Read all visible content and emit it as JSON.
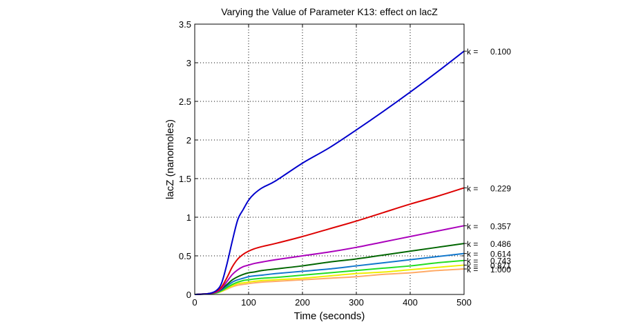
{
  "chart_data": {
    "type": "line",
    "title": "Varying the Value of Parameter K13: effect on lacZ",
    "xlabel": "Time (seconds)",
    "ylabel": "lacZ (nanomoles)",
    "xlim": [
      0,
      500
    ],
    "ylim": [
      0,
      3.5
    ],
    "xticks": [
      0,
      100,
      200,
      300,
      400,
      500
    ],
    "xtick_labels": [
      "0",
      "100",
      "200",
      "300",
      "400",
      "500"
    ],
    "yticks": [
      0,
      0.5,
      1,
      1.5,
      2,
      2.5,
      3,
      3.5
    ],
    "ytick_labels": [
      "0",
      "0.5",
      "1",
      "1.5",
      "2",
      "2.5",
      "3",
      "3.5"
    ],
    "grid": true,
    "legend": "right-side annotations",
    "x": [
      0,
      25,
      40,
      50,
      60,
      70,
      80,
      90,
      100,
      110,
      125,
      150,
      200,
      250,
      300,
      350,
      400,
      450,
      500
    ],
    "series": [
      {
        "name": "k = 0.100",
        "k_label": "k =",
        "k_value": "0.100",
        "color": "#0000cc",
        "values": [
          0,
          0.01,
          0.05,
          0.15,
          0.4,
          0.7,
          0.97,
          1.1,
          1.22,
          1.3,
          1.38,
          1.47,
          1.7,
          1.9,
          2.13,
          2.37,
          2.62,
          2.88,
          3.15
        ]
      },
      {
        "name": "k = 0.229",
        "k_label": "k =",
        "k_value": "0.229",
        "color": "#dd0000",
        "values": [
          0,
          0.01,
          0.04,
          0.1,
          0.22,
          0.36,
          0.46,
          0.52,
          0.56,
          0.59,
          0.62,
          0.66,
          0.75,
          0.85,
          0.95,
          1.06,
          1.17,
          1.27,
          1.38
        ]
      },
      {
        "name": "k = 0.357",
        "k_label": "k =",
        "k_value": "0.357",
        "color": "#aa00bb",
        "values": [
          0,
          0.01,
          0.03,
          0.08,
          0.17,
          0.26,
          0.32,
          0.36,
          0.38,
          0.4,
          0.42,
          0.45,
          0.5,
          0.55,
          0.61,
          0.68,
          0.75,
          0.82,
          0.89
        ]
      },
      {
        "name": "k = 0.486",
        "k_label": "k =",
        "k_value": "0.486",
        "color": "#006600",
        "values": [
          0,
          0.01,
          0.03,
          0.07,
          0.13,
          0.19,
          0.23,
          0.26,
          0.28,
          0.29,
          0.31,
          0.33,
          0.37,
          0.42,
          0.46,
          0.51,
          0.56,
          0.61,
          0.66
        ]
      },
      {
        "name": "k = 0.614",
        "k_label": "k =",
        "k_value": "0.614",
        "color": "#1177cc",
        "values": [
          0,
          0.01,
          0.03,
          0.06,
          0.11,
          0.16,
          0.19,
          0.21,
          0.23,
          0.24,
          0.25,
          0.27,
          0.3,
          0.33,
          0.37,
          0.41,
          0.45,
          0.49,
          0.53
        ]
      },
      {
        "name": "k = 0.743",
        "k_label": "k =",
        "k_value": "0.743",
        "color": "#22dd22",
        "values": [
          0,
          0.01,
          0.02,
          0.05,
          0.09,
          0.13,
          0.16,
          0.18,
          0.19,
          0.2,
          0.21,
          0.22,
          0.25,
          0.28,
          0.31,
          0.34,
          0.37,
          0.41,
          0.44
        ]
      },
      {
        "name": "k = 0.871",
        "k_label": "k =",
        "k_value": "0.871",
        "color": "#eeee00",
        "values": [
          0,
          0.01,
          0.02,
          0.04,
          0.08,
          0.11,
          0.14,
          0.15,
          0.16,
          0.17,
          0.18,
          0.19,
          0.21,
          0.24,
          0.27,
          0.29,
          0.32,
          0.35,
          0.38
        ]
      },
      {
        "name": "k = 1.000",
        "k_label": "k =",
        "k_value": "1.000",
        "color": "#ffaa66",
        "values": [
          0,
          0.01,
          0.02,
          0.04,
          0.07,
          0.1,
          0.12,
          0.13,
          0.14,
          0.15,
          0.16,
          0.17,
          0.19,
          0.21,
          0.23,
          0.26,
          0.28,
          0.31,
          0.33
        ]
      }
    ]
  }
}
